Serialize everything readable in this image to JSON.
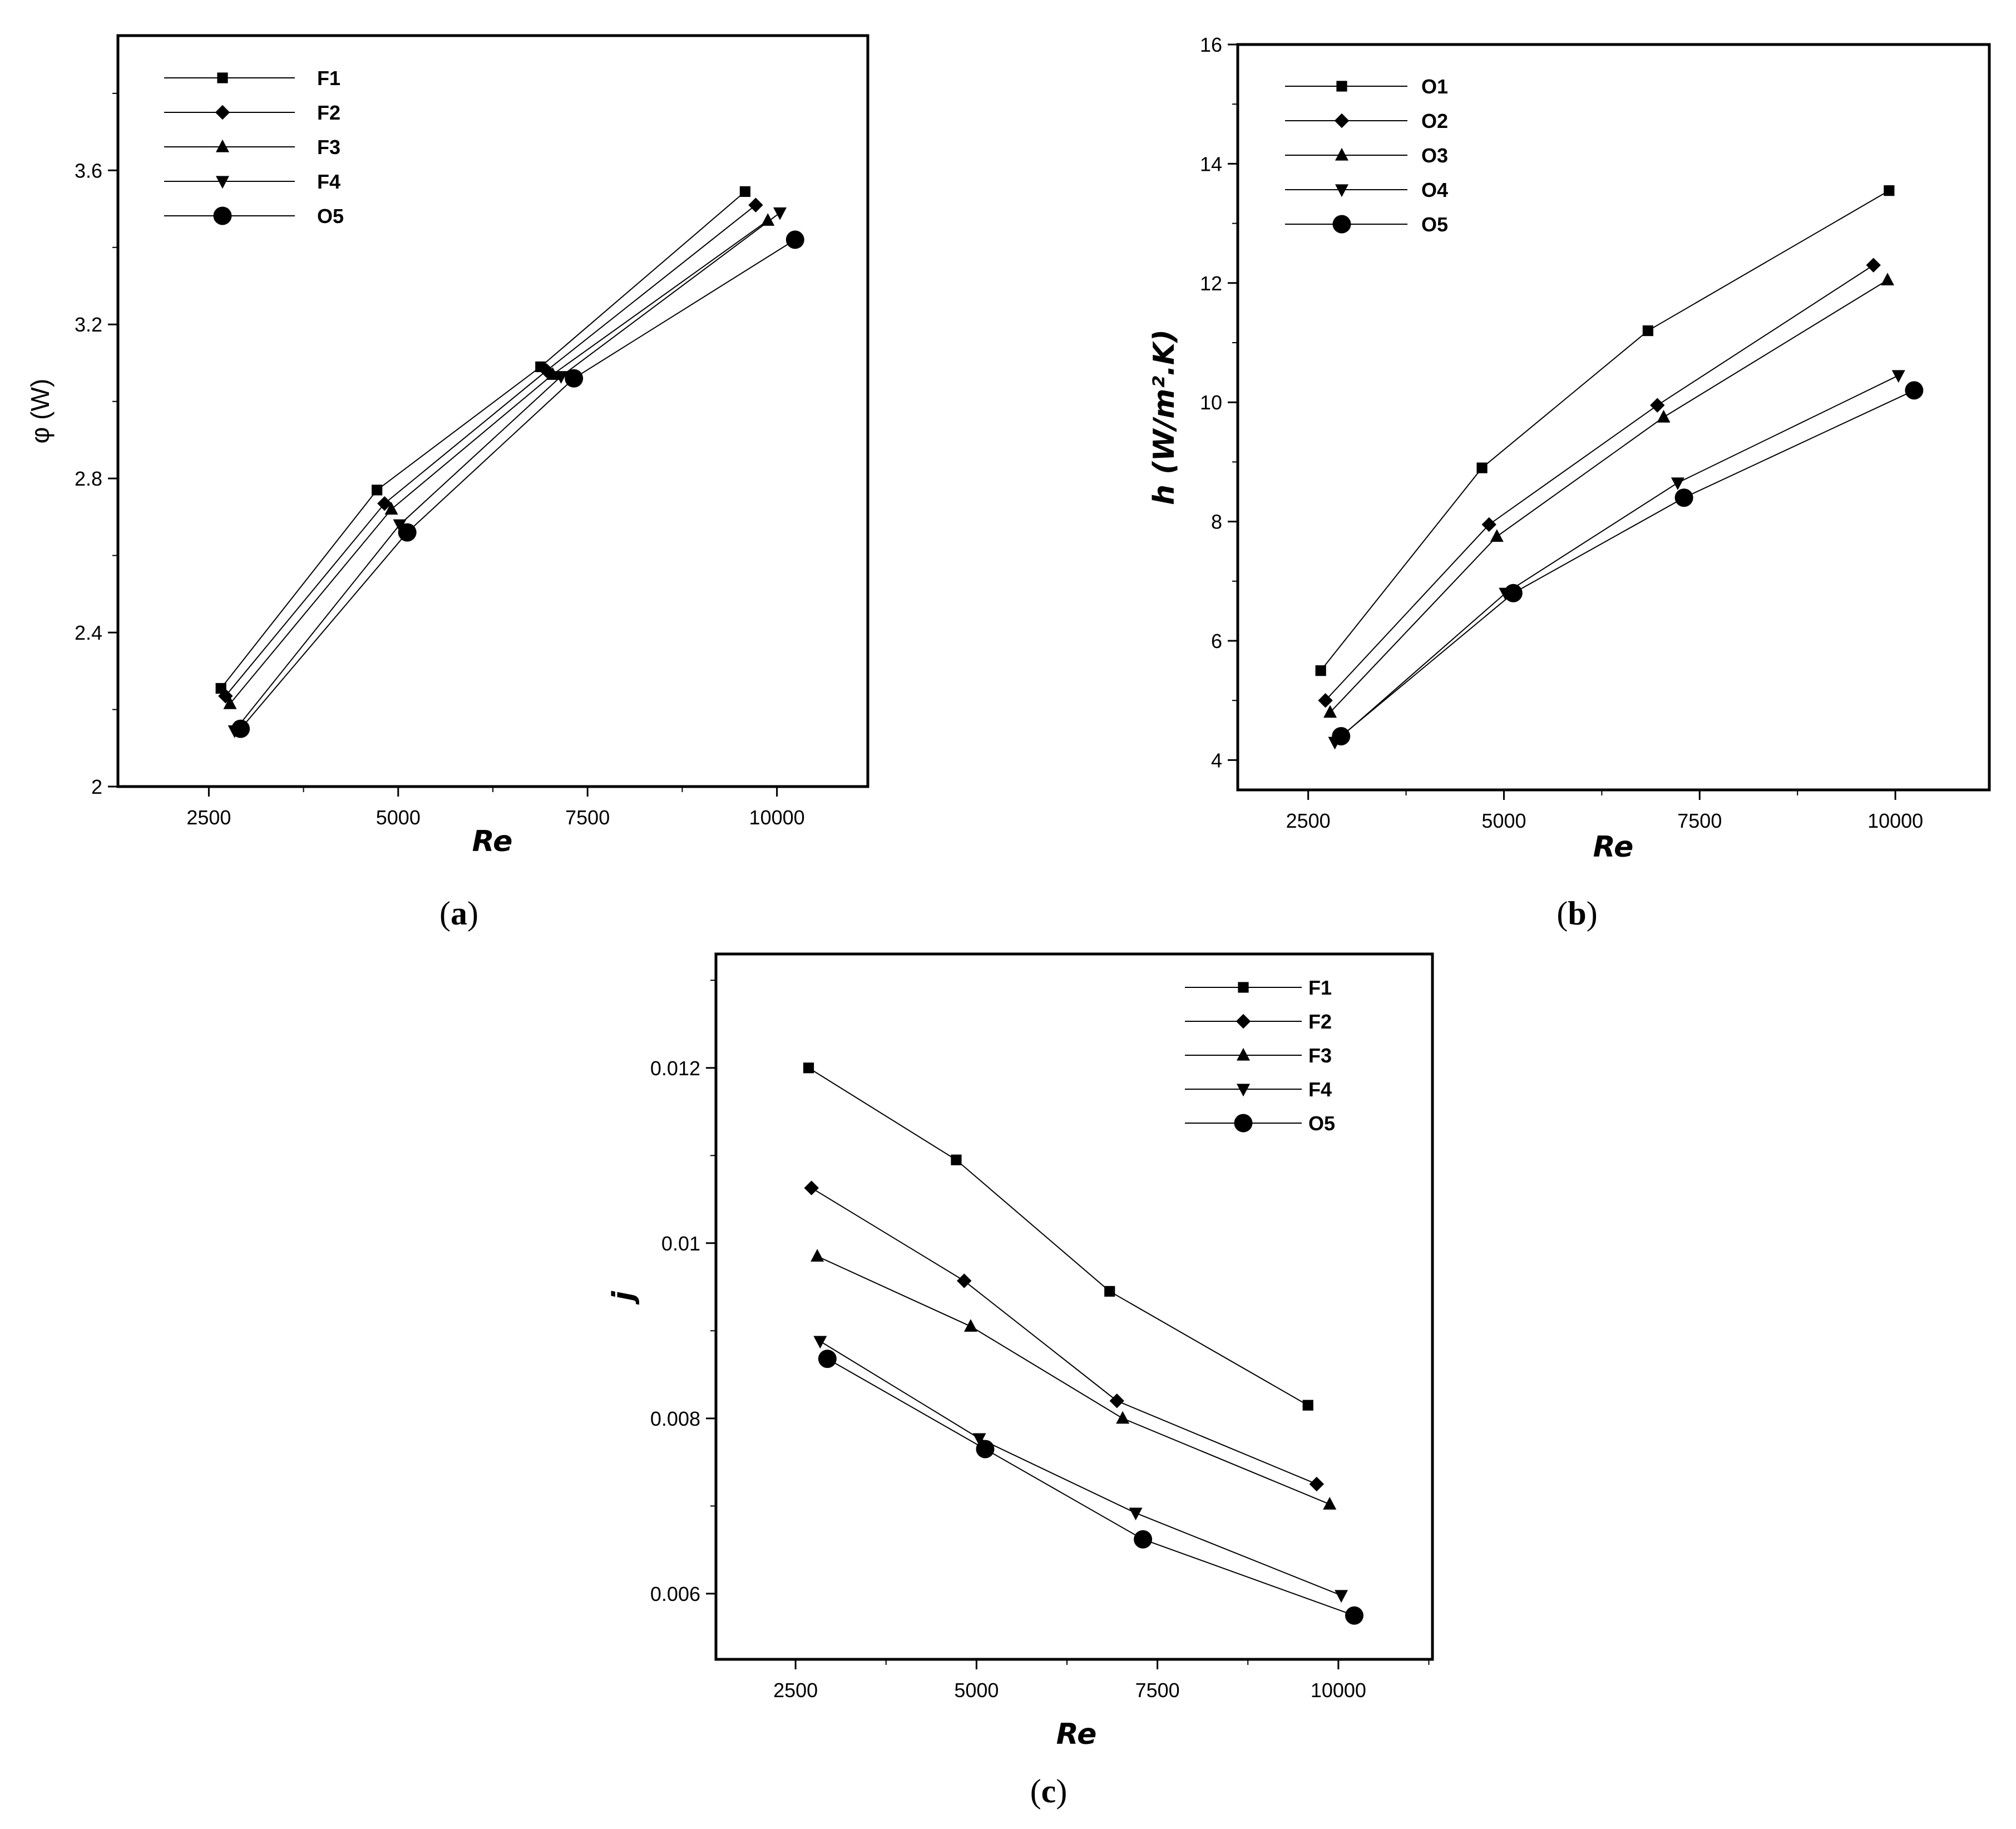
{
  "chart_data": [
    {
      "panel": "a",
      "panel_label": "a",
      "type": "line",
      "xlabel": "Re",
      "ylabel": "φ (W)",
      "xlim": [
        1300,
        11200
      ],
      "ylim": [
        2.0,
        3.95
      ],
      "x_ticks": [
        2500,
        5000,
        7500,
        10000
      ],
      "y_ticks": [
        2,
        2.4,
        2.8,
        3.2,
        3.6
      ],
      "y_tick_labels": [
        "2",
        "2.4",
        "2.8",
        "3.2",
        "3.6"
      ],
      "legend_position": "top-left",
      "series": [
        {
          "name": "F1",
          "marker": "square",
          "x": [
            2660,
            4720,
            6880,
            9580
          ],
          "y": [
            2.255,
            2.77,
            3.09,
            3.545
          ]
        },
        {
          "name": "F2",
          "marker": "diamond",
          "x": [
            2720,
            4820,
            6960,
            9720
          ],
          "y": [
            2.235,
            2.735,
            3.08,
            3.51
          ]
        },
        {
          "name": "F3",
          "marker": "triangle-up",
          "x": [
            2780,
            4910,
            7040,
            9880
          ],
          "y": [
            2.215,
            2.72,
            3.07,
            3.47
          ]
        },
        {
          "name": "F4",
          "marker": "triangle-down",
          "x": [
            2840,
            5020,
            7150,
            10040
          ],
          "y": [
            2.145,
            2.68,
            3.065,
            3.49
          ]
        },
        {
          "name": "O5",
          "marker": "circle",
          "x": [
            2920,
            5120,
            7320,
            10240
          ],
          "y": [
            2.15,
            2.66,
            3.06,
            3.42
          ]
        }
      ]
    },
    {
      "panel": "b",
      "panel_label": "b",
      "type": "line",
      "xlabel": "Re",
      "ylabel": "h (W/m².K)",
      "xlim": [
        1600,
        11200
      ],
      "ylim": [
        3.5,
        16.0
      ],
      "x_ticks": [
        2500,
        5000,
        7500,
        10000
      ],
      "y_ticks": [
        4,
        6,
        8,
        10,
        12,
        14,
        16
      ],
      "y_tick_labels": [
        "4",
        "6",
        "8",
        "10",
        "12",
        "14",
        "16"
      ],
      "legend_position": "top-left",
      "series": [
        {
          "name": "O1",
          "marker": "square",
          "x": [
            2660,
            4720,
            6840,
            9920
          ],
          "y": [
            5.5,
            8.9,
            11.2,
            13.55
          ]
        },
        {
          "name": "O2",
          "marker": "diamond",
          "x": [
            2720,
            4810,
            6960,
            9720
          ],
          "y": [
            5.0,
            7.95,
            9.95,
            12.3
          ]
        },
        {
          "name": "O3",
          "marker": "triangle-up",
          "x": [
            2780,
            4910,
            7040,
            9900
          ],
          "y": [
            4.8,
            7.75,
            9.75,
            12.05
          ]
        },
        {
          "name": "O4",
          "marker": "triangle-down",
          "x": [
            2840,
            5020,
            7220,
            10040
          ],
          "y": [
            4.3,
            6.8,
            8.65,
            10.45
          ]
        },
        {
          "name": "O5",
          "marker": "circle",
          "x": [
            2920,
            5120,
            7300,
            10240
          ],
          "y": [
            4.4,
            6.8,
            8.4,
            10.2
          ]
        }
      ]
    },
    {
      "panel": "c",
      "panel_label": "c",
      "type": "line",
      "xlabel": "Re",
      "ylabel": "j",
      "xlim": [
        1400,
        11300
      ],
      "ylim": [
        0.00525,
        0.0133
      ],
      "x_ticks": [
        2500,
        5000,
        7500,
        10000
      ],
      "y_ticks": [
        0.006,
        0.008,
        0.01,
        0.012
      ],
      "y_tick_labels": [
        "0.006",
        "0.008",
        "0.01",
        "0.012"
      ],
      "legend_position": "top-right",
      "series": [
        {
          "name": "F1",
          "marker": "square",
          "x": [
            2680,
            4720,
            6840,
            9580
          ],
          "y": [
            0.012,
            0.01095,
            0.00945,
            0.00815
          ]
        },
        {
          "name": "F2",
          "marker": "diamond",
          "x": [
            2720,
            4830,
            6940,
            9700
          ],
          "y": [
            0.01063,
            0.00957,
            0.0082,
            0.00725
          ]
        },
        {
          "name": "F3",
          "marker": "triangle-up",
          "x": [
            2800,
            4920,
            7020,
            9880
          ],
          "y": [
            0.00985,
            0.00905,
            0.008,
            0.00702
          ]
        },
        {
          "name": "F4",
          "marker": "triangle-down",
          "x": [
            2840,
            5040,
            7200,
            10040
          ],
          "y": [
            0.00888,
            0.00777,
            0.00692,
            0.00598
          ]
        },
        {
          "name": "O5",
          "marker": "circle",
          "x": [
            2940,
            5120,
            7300,
            10220
          ],
          "y": [
            0.00868,
            0.00765,
            0.00662,
            0.00575
          ]
        }
      ]
    }
  ]
}
